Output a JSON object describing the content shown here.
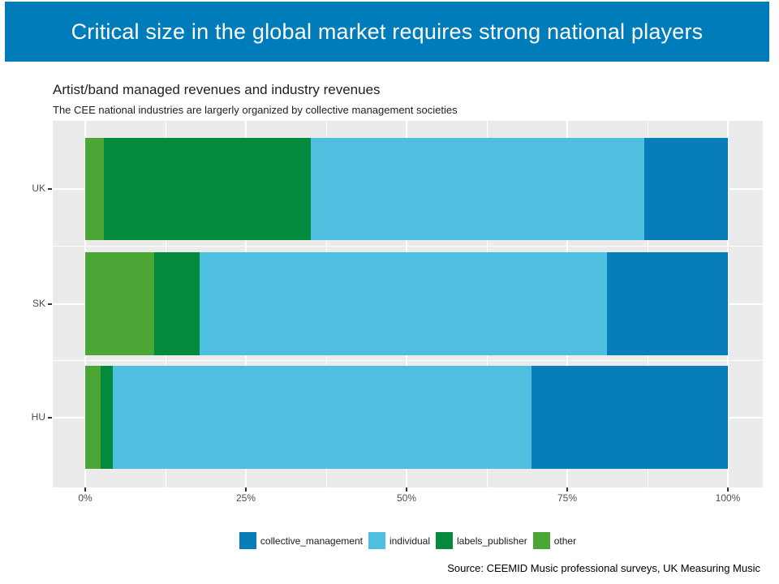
{
  "banner": {
    "title": "Critical size in the global market requires strong national players",
    "bg_color": "#007CBA",
    "text_color": "#FFFFFF"
  },
  "chart": {
    "title": "Artist/band managed revenues and industry revenues",
    "subtitle": "The CEE national industries are largerly organized by collective management societies",
    "source": "Source: CEEMID Music professional surveys, UK Measuring Music"
  },
  "chart_data": {
    "type": "bar",
    "orientation": "horizontal",
    "stacked": true,
    "unit": "percent",
    "categories": [
      "UK",
      "SK",
      "HU"
    ],
    "series": [
      {
        "name": "collective_management",
        "color": "#077EB9",
        "values": [
          13.0,
          18.8,
          30.5
        ]
      },
      {
        "name": "individual",
        "color": "#4FBFE0",
        "values": [
          51.9,
          63.4,
          65.2
        ]
      },
      {
        "name": "labels_publisher",
        "color": "#048A3C",
        "values": [
          32.2,
          7.1,
          1.9
        ]
      },
      {
        "name": "other",
        "color": "#4BA636",
        "values": [
          2.9,
          10.7,
          2.4
        ]
      }
    ],
    "stack_order": [
      "other",
      "labels_publisher",
      "individual",
      "collective_management"
    ],
    "x_ticks": [
      {
        "value": 0,
        "label": "0%"
      },
      {
        "value": 25,
        "label": "25%"
      },
      {
        "value": 50,
        "label": "50%"
      },
      {
        "value": 75,
        "label": "75%"
      },
      {
        "value": 100,
        "label": "100%"
      }
    ],
    "x_minor_ticks": [
      12.5,
      37.5,
      62.5,
      87.5
    ],
    "xlim": [
      0,
      100
    ],
    "legend_position": "bottom",
    "panel_bg": "#EBEBEB",
    "grid_color": "#FFFFFF",
    "axis_text_color": "#4D4D4D"
  }
}
